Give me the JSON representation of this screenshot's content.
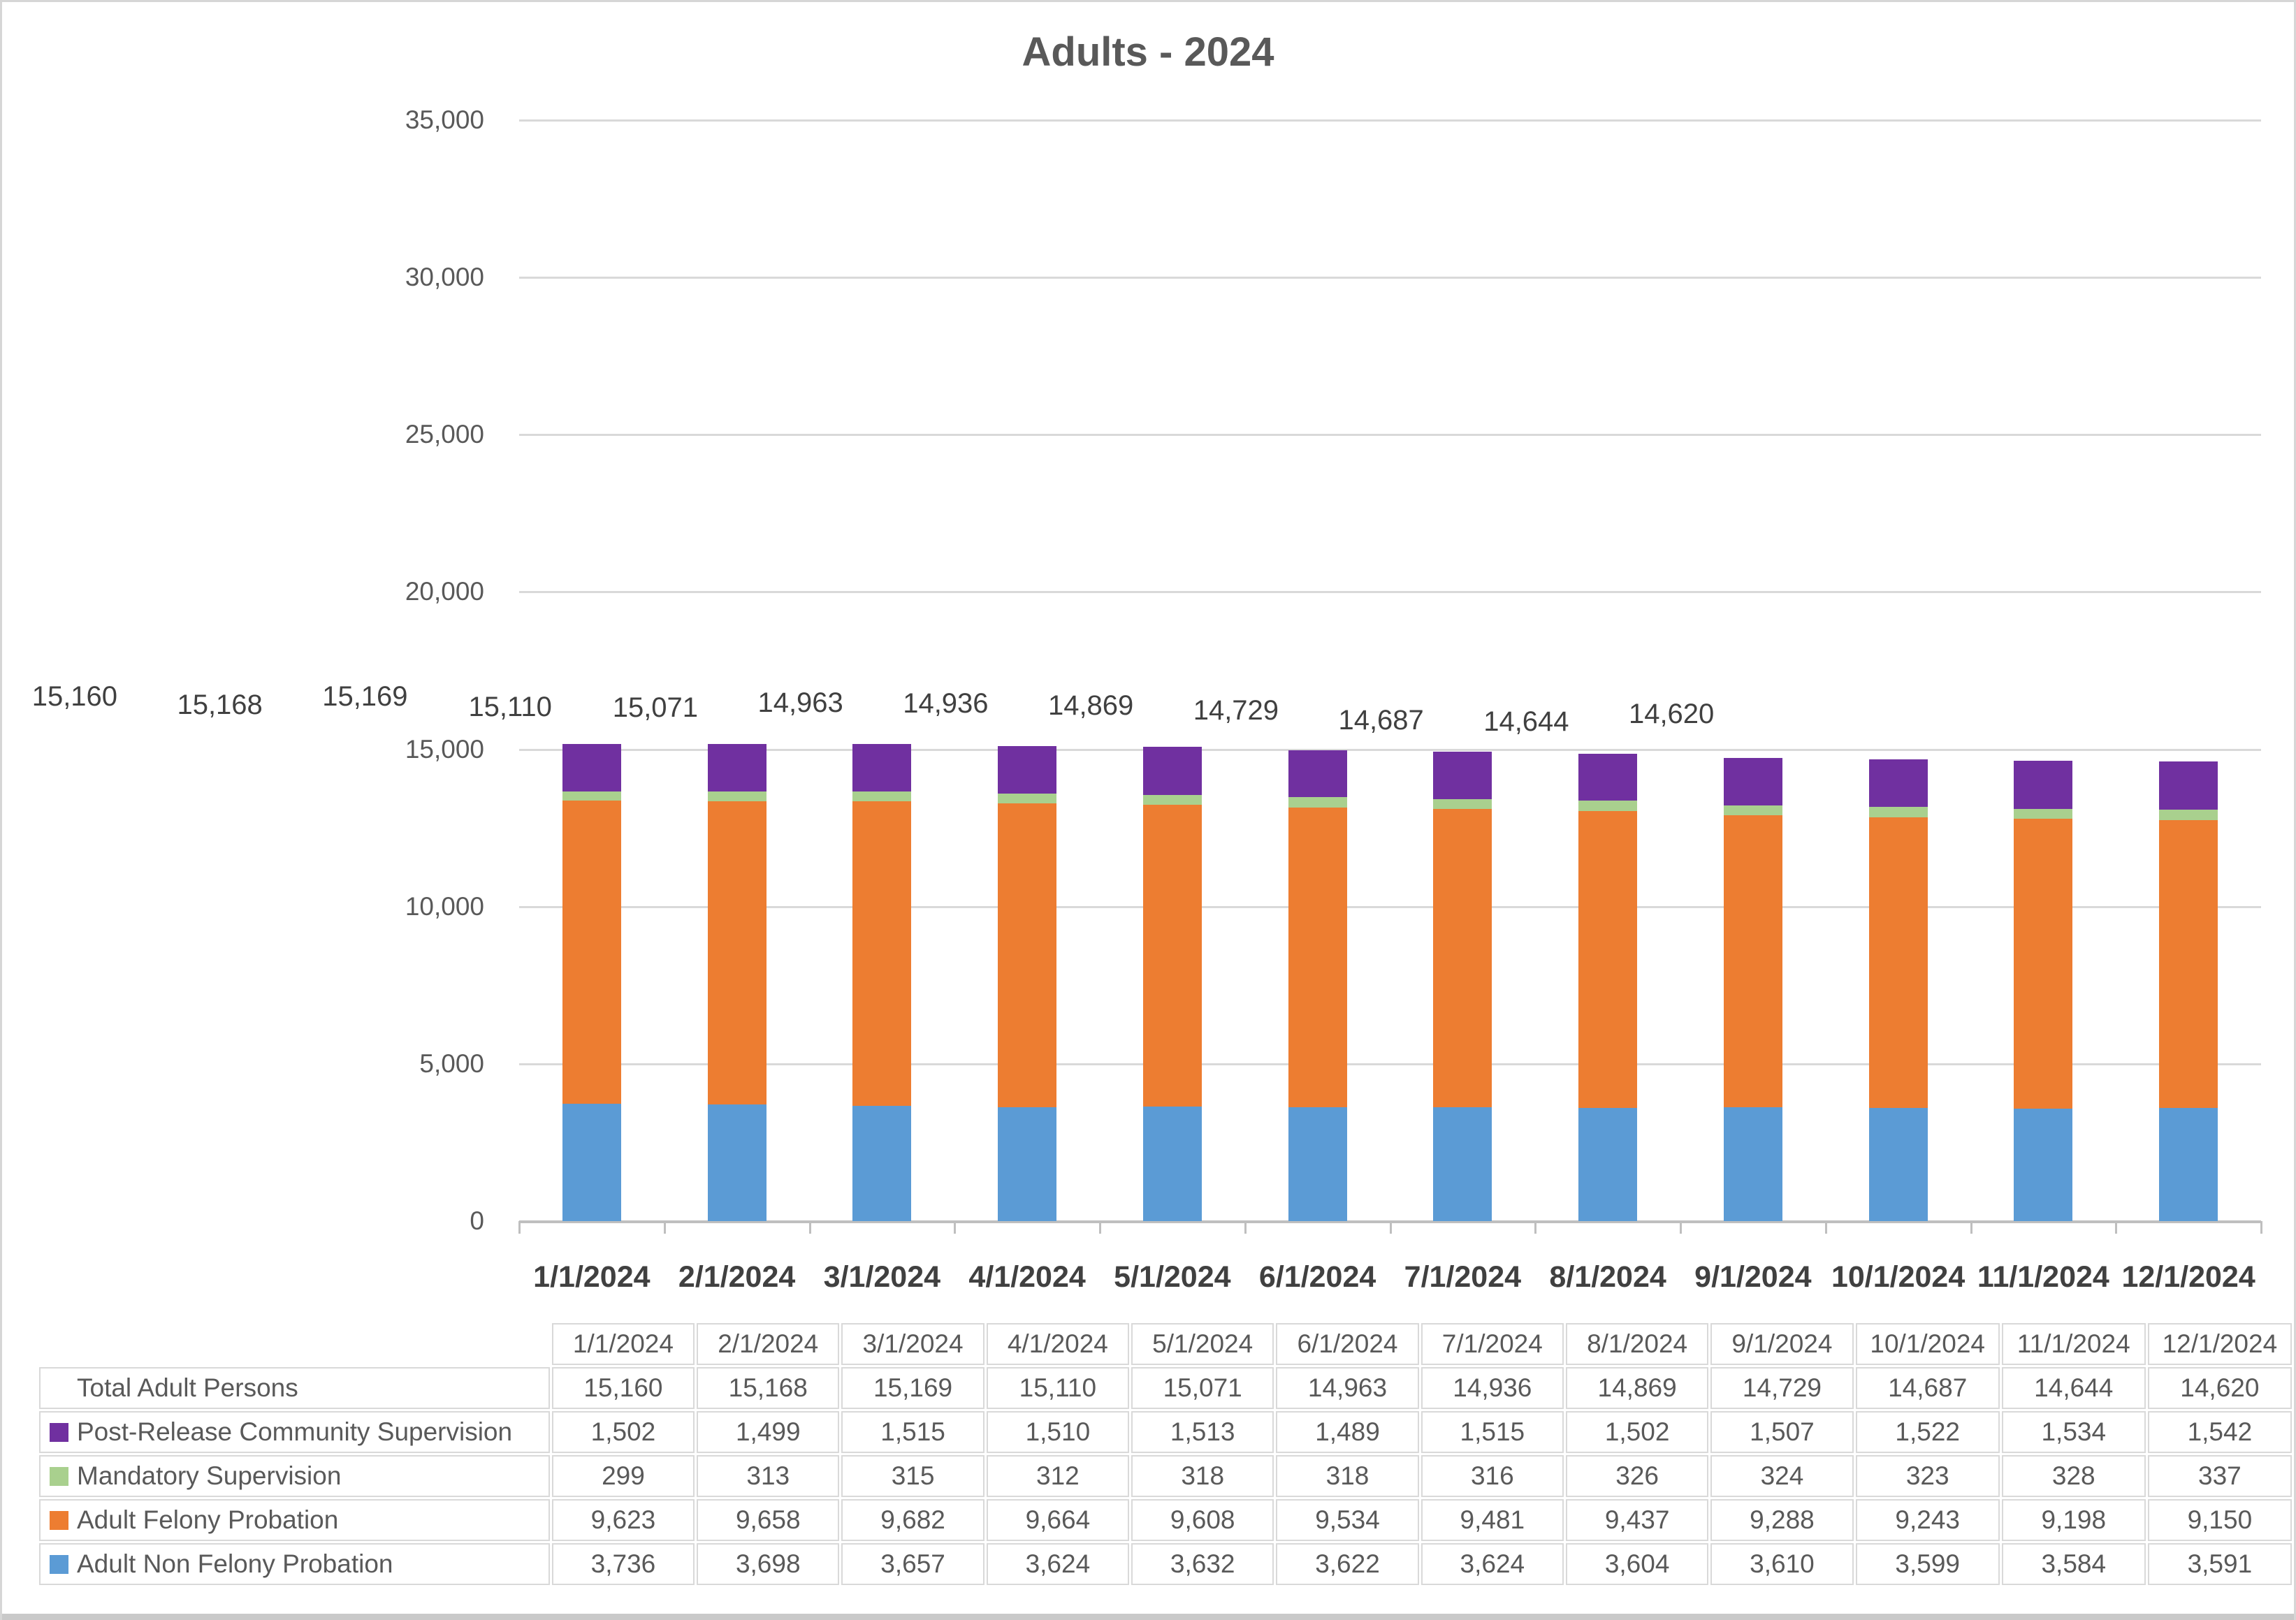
{
  "title": "Adults - 2024",
  "colors": {
    "purple": "#7030A0",
    "green": "#A9D08E",
    "orange": "#ED7D31",
    "blue": "#5B9BD5",
    "gridline": "#D9D9D9",
    "axis_text": "#595959",
    "label_text": "#404040"
  },
  "chart_data": {
    "type": "bar",
    "stacked": true,
    "title": "Adults - 2024",
    "categories": [
      "1/1/2024",
      "2/1/2024",
      "3/1/2024",
      "4/1/2024",
      "5/1/2024",
      "6/1/2024",
      "7/1/2024",
      "8/1/2024",
      "9/1/2024",
      "10/1/2024",
      "11/1/2024",
      "12/1/2024"
    ],
    "series": [
      {
        "name": "Post-Release Community Supervision",
        "color": "#7030A0",
        "values": [
          1502,
          1499,
          1515,
          1510,
          1513,
          1489,
          1515,
          1502,
          1507,
          1522,
          1534,
          1542
        ]
      },
      {
        "name": "Mandatory Supervision",
        "color": "#A9D08E",
        "values": [
          299,
          313,
          315,
          312,
          318,
          318,
          316,
          326,
          324,
          323,
          328,
          337
        ]
      },
      {
        "name": "Adult Felony Probation",
        "color": "#ED7D31",
        "values": [
          9623,
          9658,
          9682,
          9664,
          9608,
          9534,
          9481,
          9437,
          9288,
          9243,
          9198,
          9150
        ]
      },
      {
        "name": "Adult Non Felony Probation",
        "color": "#5B9BD5",
        "values": [
          3736,
          3698,
          3657,
          3624,
          3632,
          3622,
          3624,
          3604,
          3610,
          3599,
          3584,
          3591
        ]
      }
    ],
    "totals": [
      15160,
      15168,
      15169,
      15110,
      15071,
      14963,
      14936,
      14869,
      14729,
      14687,
      14644,
      14620
    ],
    "totals_label": "Total Adult Persons",
    "ylim": [
      0,
      35000
    ],
    "ytick_interval": 5000,
    "yticks": [
      "35,000",
      "30,000",
      "25,000",
      "20,000",
      "15,000",
      "10,000",
      "5,000",
      "0"
    ],
    "grid": true,
    "legend_position": "table-below",
    "data_labels": "totals-above-bars"
  },
  "table": {
    "columns": [
      "1/1/2024",
      "2/1/2024",
      "3/1/2024",
      "4/1/2024",
      "5/1/2024",
      "6/1/2024",
      "7/1/2024",
      "8/1/2024",
      "9/1/2024",
      "10/1/2024",
      "11/1/2024",
      "12/1/2024"
    ],
    "rows": [
      {
        "label": "Total Adult Persons",
        "swatch": null,
        "values": [
          15160,
          15168,
          15169,
          15110,
          15071,
          14963,
          14936,
          14869,
          14729,
          14687,
          14644,
          14620
        ]
      },
      {
        "label": "Post-Release Community Supervision",
        "swatch": "#7030A0",
        "values": [
          1502,
          1499,
          1515,
          1510,
          1513,
          1489,
          1515,
          1502,
          1507,
          1522,
          1534,
          1542
        ]
      },
      {
        "label": "Mandatory Supervision",
        "swatch": "#A9D08E",
        "values": [
          299,
          313,
          315,
          312,
          318,
          318,
          316,
          326,
          324,
          323,
          328,
          337
        ]
      },
      {
        "label": "Adult Felony Probation",
        "swatch": "#ED7D31",
        "values": [
          9623,
          9658,
          9682,
          9664,
          9608,
          9534,
          9481,
          9437,
          9288,
          9243,
          9198,
          9150
        ]
      },
      {
        "label": "Adult Non Felony Probation",
        "swatch": "#5B9BD5",
        "values": [
          3736,
          3698,
          3657,
          3624,
          3632,
          3622,
          3624,
          3604,
          3610,
          3599,
          3584,
          3591
        ]
      }
    ]
  }
}
